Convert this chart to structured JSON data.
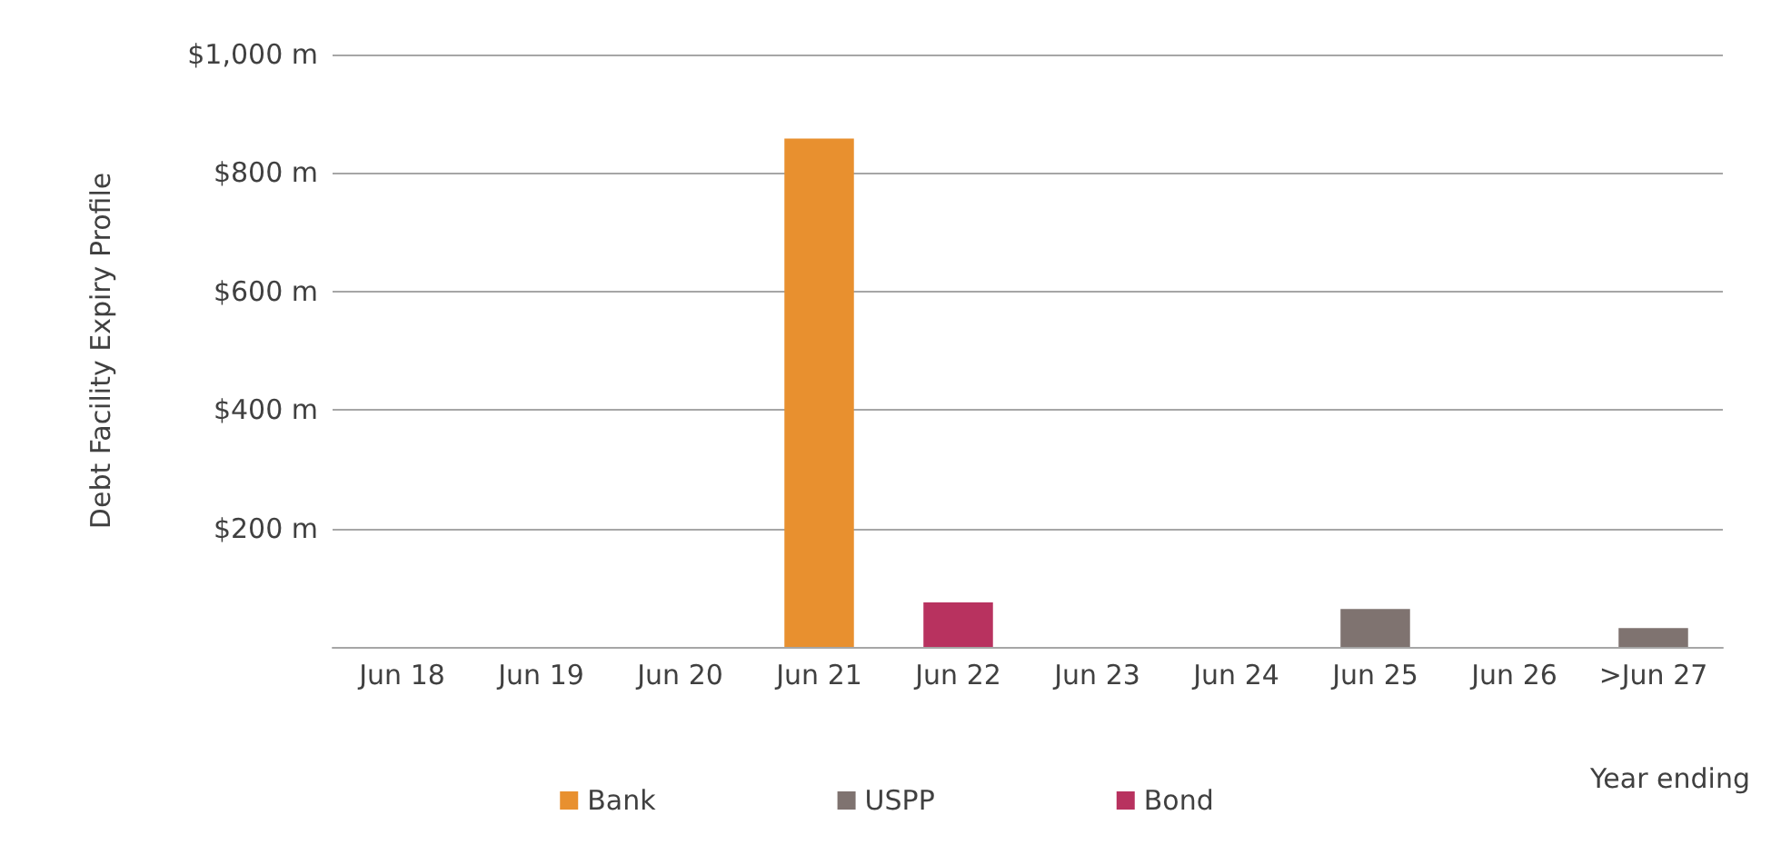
{
  "chart_data": {
    "type": "bar",
    "ylabel": "Debt Facility Expiry Profile",
    "xlabel": "Year ending",
    "categories": [
      "Jun 18",
      "Jun 19",
      "Jun 20",
      "Jun 21",
      "Jun 22",
      "Jun 23",
      "Jun 24",
      "Jun 25",
      "Jun 26",
      ">Jun 27"
    ],
    "series": [
      {
        "name": "Bank",
        "color": "#e8902f",
        "values": [
          null,
          null,
          null,
          858,
          null,
          null,
          null,
          null,
          null,
          null
        ]
      },
      {
        "name": "USPP",
        "color": "#7f7370",
        "values": [
          null,
          null,
          null,
          null,
          null,
          null,
          null,
          64,
          null,
          32
        ]
      },
      {
        "name": "Bond",
        "color": "#b8325f",
        "values": [
          null,
          null,
          null,
          null,
          75,
          null,
          null,
          null,
          null,
          null
        ]
      }
    ],
    "stacked": true,
    "ylim": [
      0,
      1000
    ],
    "yticks": [
      {
        "value": 0,
        "label": null
      },
      {
        "value": 200,
        "label": "$200 m"
      },
      {
        "value": 400,
        "label": "$400 m"
      },
      {
        "value": 600,
        "label": "$600 m"
      },
      {
        "value": 800,
        "label": "$800 m"
      },
      {
        "value": 1000,
        "label": "$1,000 m"
      }
    ],
    "grid": "y",
    "legend": "bottom"
  }
}
